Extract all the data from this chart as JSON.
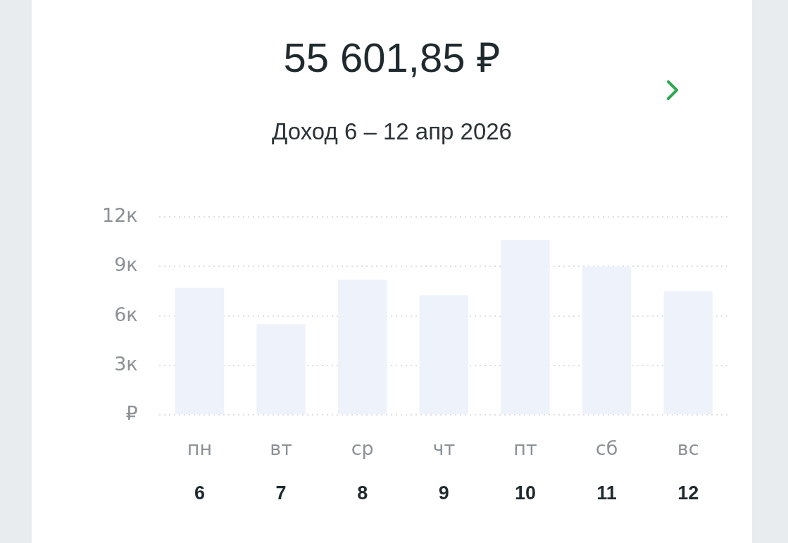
{
  "chart_data": {
    "type": "bar",
    "title": "55 601,85 ₽",
    "subtitle": "Доход 6 – 12 апр 2026",
    "categories": [
      "пн\n6",
      "вт\n7",
      "ср\n8",
      "чт\n9",
      "пт\n10",
      "сб\n11",
      "вс\n12"
    ],
    "values": [
      7.7,
      5.5,
      8.2,
      7.25,
      10.6,
      9.0,
      7.5
    ],
    "color": "#eef2fb",
    "ylim": [
      0,
      12
    ],
    "yticks": [
      {
        "value": 0,
        "label": "₽"
      },
      {
        "value": 3,
        "label": "3к"
      },
      {
        "value": 6,
        "label": "6к"
      },
      {
        "value": 9,
        "label": "9к"
      },
      {
        "value": 12,
        "label": "12к"
      }
    ],
    "grid": "y",
    "legend": false
  }
}
